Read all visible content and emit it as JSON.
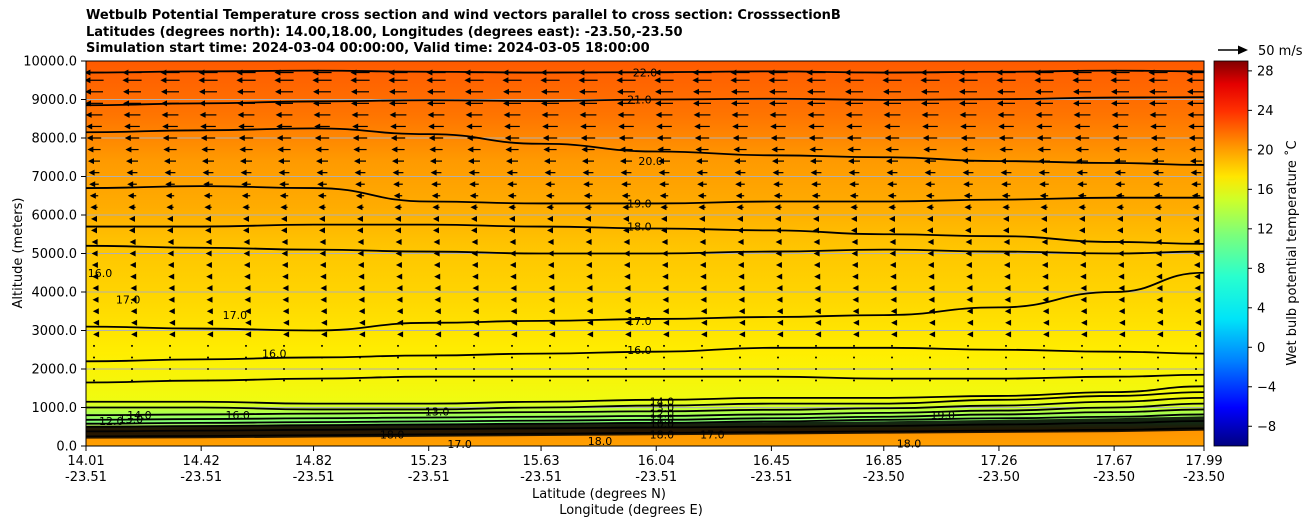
{
  "chart_data": {
    "type": "contour",
    "title_lines": [
      "Wetbulb Potential Temperature cross section and wind vectors parallel to cross section: CrosssectionB",
      "Latitudes (degrees north): 14.00,18.00, Longitudes (degrees east): -23.50,-23.50",
      "Simulation start time: 2024-03-04 00:00:00, Valid time: 2024-03-05 18:00:00"
    ],
    "xlabel_lat": "Latitude (degrees N)",
    "xlabel_lon": "Longitude (degrees E)",
    "ylabel": "Altitude (meters)",
    "colorbar_label": "Wet bulb potential temperature ˚C",
    "colorbar_ticks": [
      "28",
      "24",
      "20",
      "16",
      "12",
      "8",
      "4",
      "0",
      "−4",
      "−8"
    ],
    "colorbar_values": [
      28,
      24,
      20,
      16,
      12,
      8,
      4,
      0,
      -4,
      -8
    ],
    "colorbar_range": [
      -10,
      29
    ],
    "quiver_key": "50 m/s",
    "x_ticks_lat": [
      "14.01",
      "14.42",
      "14.82",
      "15.23",
      "15.63",
      "16.04",
      "16.45",
      "16.85",
      "17.26",
      "17.67",
      "17.99"
    ],
    "x_ticks_lon": [
      "-23.51",
      "-23.51",
      "-23.51",
      "-23.51",
      "-23.51",
      "-23.51",
      "-23.51",
      "-23.50",
      "-23.50",
      "-23.50",
      "-23.50"
    ],
    "x_tick_values": [
      14.01,
      14.42,
      14.82,
      15.23,
      15.63,
      16.04,
      16.45,
      16.85,
      17.26,
      17.67,
      17.99
    ],
    "xlim": [
      14.01,
      17.99
    ],
    "y_ticks": [
      "0.0",
      "1000.0",
      "2000.0",
      "3000.0",
      "4000.0",
      "5000.0",
      "6000.0",
      "7000.0",
      "8000.0",
      "9000.0",
      "10000.0"
    ],
    "y_tick_values": [
      0,
      1000,
      2000,
      3000,
      4000,
      5000,
      6000,
      7000,
      8000,
      9000,
      10000
    ],
    "ylim": [
      0,
      10000
    ],
    "grid": "horizontal",
    "contour_levels": [
      {
        "value": 22,
        "altitudes": [
          9700,
          9730,
          9750,
          9720,
          9700,
          9710,
          9730,
          9700,
          9720,
          9750,
          9730
        ]
      },
      {
        "value": 21,
        "altitudes": [
          8850,
          8900,
          8950,
          8980,
          8960,
          9000,
          9020,
          8990,
          9010,
          9050,
          9060
        ]
      },
      {
        "value": 20,
        "altitudes": [
          8150,
          8200,
          8250,
          8100,
          7850,
          7650,
          7550,
          7500,
          7400,
          7350,
          7300
        ]
      },
      {
        "value": 19,
        "altitudes": [
          6700,
          6750,
          6700,
          6350,
          6300,
          6300,
          6350,
          6350,
          6400,
          6450,
          6450
        ]
      },
      {
        "value": 18,
        "altitudes": [
          5700,
          5700,
          5750,
          5750,
          5700,
          5650,
          5600,
          5500,
          5450,
          5300,
          5250
        ]
      },
      {
        "value": 17,
        "altitudes": [
          5200,
          5150,
          5100,
          5050,
          5000,
          5000,
          5050,
          5100,
          5050,
          5000,
          5050
        ]
      },
      {
        "value": 17,
        "altitudes": [
          3100,
          3050,
          3000,
          3200,
          3250,
          3300,
          3350,
          3400,
          3600,
          4000,
          4500
        ]
      },
      {
        "value": 16,
        "altitudes": [
          2200,
          2250,
          2300,
          2350,
          2400,
          2450,
          2550,
          2550,
          2500,
          2450,
          2400
        ]
      },
      {
        "value": 16,
        "altitudes": [
          1650,
          1700,
          1750,
          1800,
          1800,
          1800,
          1800,
          1750,
          1750,
          1800,
          1850
        ]
      },
      {
        "value": 15,
        "altitudes": [
          1150,
          1150,
          1100,
          1100,
          1150,
          1200,
          1250,
          1250,
          1300,
          1400,
          1550
        ]
      },
      {
        "value": 14,
        "altitudes": [
          1000,
          1000,
          950,
          950,
          1000,
          1050,
          1100,
          1100,
          1200,
          1300,
          1400
        ]
      },
      {
        "value": 13,
        "altitudes": [
          800,
          820,
          840,
          860,
          880,
          900,
          940,
          980,
          1050,
          1150,
          1250
        ]
      },
      {
        "value": 12,
        "altitudes": [
          680,
          700,
          720,
          740,
          760,
          780,
          820,
          860,
          920,
          1000,
          1100
        ]
      },
      {
        "value": 11,
        "altitudes": [
          580,
          600,
          620,
          640,
          660,
          680,
          720,
          760,
          820,
          880,
          950
        ]
      },
      {
        "value": 10,
        "altitudes": [
          500,
          520,
          540,
          560,
          580,
          600,
          640,
          680,
          720,
          760,
          820
        ]
      },
      {
        "value": 18,
        "altitudes": [
          380,
          400,
          420,
          440,
          460,
          480,
          500,
          520,
          560,
          600,
          650
        ]
      },
      {
        "value": 18,
        "altitudes": [
          250,
          260,
          280,
          300,
          320,
          340,
          360,
          380,
          400,
          420,
          460
        ]
      }
    ],
    "contour_labels": [
      {
        "text": "22.0",
        "x": 16.0,
        "y": 9700
      },
      {
        "text": "21.0",
        "x": 15.98,
        "y": 9000
      },
      {
        "text": "20.0",
        "x": 16.02,
        "y": 7400
      },
      {
        "text": "19.0",
        "x": 15.98,
        "y": 6300
      },
      {
        "text": "18.0",
        "x": 15.98,
        "y": 5700
      },
      {
        "text": "16.0",
        "x": 14.06,
        "y": 4500
      },
      {
        "text": "17.0",
        "x": 14.16,
        "y": 3800
      },
      {
        "text": "17.0",
        "x": 14.54,
        "y": 3400
      },
      {
        "text": "16.0",
        "x": 14.68,
        "y": 2400
      },
      {
        "text": "17.0",
        "x": 15.98,
        "y": 3250
      },
      {
        "text": "16.0",
        "x": 15.98,
        "y": 2500
      },
      {
        "text": "16.0",
        "x": 14.55,
        "y": 800
      },
      {
        "text": "14.0",
        "x": 16.06,
        "y": 1150
      },
      {
        "text": "13.0",
        "x": 16.06,
        "y": 1000
      },
      {
        "text": "12.0",
        "x": 16.06,
        "y": 850
      },
      {
        "text": "11.0",
        "x": 16.06,
        "y": 720
      },
      {
        "text": "10.0",
        "x": 16.06,
        "y": 580
      },
      {
        "text": "18.0",
        "x": 16.06,
        "y": 300
      },
      {
        "text": "17.0",
        "x": 16.24,
        "y": 300
      },
      {
        "text": "18.0",
        "x": 15.84,
        "y": 130
      },
      {
        "text": "17.0",
        "x": 15.34,
        "y": 50
      },
      {
        "text": "19.0",
        "x": 17.06,
        "y": 800
      },
      {
        "text": "18.0",
        "x": 16.94,
        "y": 70
      },
      {
        "text": "18.0",
        "x": 15.1,
        "y": 300
      },
      {
        "text": "13.0",
        "x": 15.26,
        "y": 900
      },
      {
        "text": "14.0",
        "x": 14.2,
        "y": 800
      },
      {
        "text": "13.0",
        "x": 14.17,
        "y": 700
      },
      {
        "text": "12.0",
        "x": 14.1,
        "y": 650
      }
    ],
    "wind_vectors": {
      "direction": "leftward",
      "rows_altitude": [
        9700,
        9500,
        9200,
        8900,
        8600,
        8300,
        8000,
        7700,
        7400,
        7100,
        6800,
        6500,
        6200,
        5900,
        5600,
        5300,
        5000,
        4700,
        4400,
        4100,
        3800,
        3500,
        3200,
        2900,
        2600,
        2300,
        2000,
        1700
      ],
      "speed_ms_by_row": [
        32,
        32,
        30,
        30,
        28,
        26,
        24,
        22,
        20,
        18,
        16,
        14,
        12,
        10,
        10,
        8,
        8,
        7,
        6,
        5,
        5,
        4,
        3,
        3,
        2,
        2,
        2,
        2
      ]
    }
  }
}
